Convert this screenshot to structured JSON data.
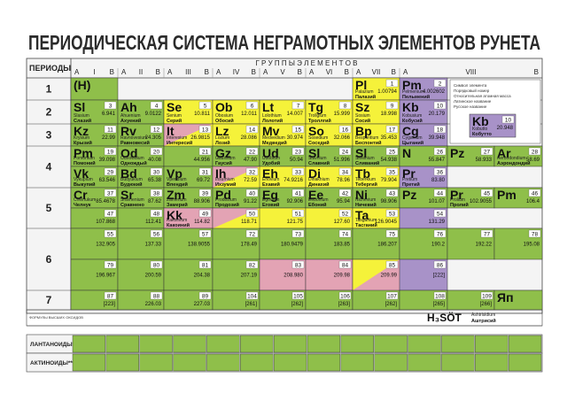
{
  "title": "ПЕРИОДИЧЕСКАЯ СИСТЕМА НЕГРАМОТНЫХ ЭЛЕМЕНТОВ РУНЕТА",
  "header": {
    "periods": "ПЕРИОДЫ",
    "groups": "Г Р У П П Ы    Э Л Е М Е Н Т О В",
    "group_labels": [
      [
        "A",
        "I",
        "B"
      ],
      [
        "A",
        "II",
        "B"
      ],
      [
        "A",
        "III",
        "B"
      ],
      [
        "A",
        "IV",
        "B"
      ],
      [
        "A",
        "V",
        "B"
      ],
      [
        "A",
        "VI",
        "B"
      ],
      [
        "A",
        "VII",
        "B"
      ],
      [
        "A",
        "VIII",
        "B"
      ]
    ]
  },
  "colors": {
    "g": "#8fbf4a",
    "y": "#f5f23a",
    "p": "#e3a3b4",
    "v": "#a892c8"
  },
  "periods": [
    {
      "label": "1",
      "rows": [
        [
          {
            "sym": "(H)",
            "c": "g"
          },
          null,
          null,
          null,
          null,
          null,
          {
            "sym": "Pl",
            "num": "1",
            "w": "1.00794",
            "lat": "Palazium",
            "ru": "Палазий",
            "c": "y"
          },
          {
            "sym": "Pm",
            "num": "2",
            "w": "4.002602",
            "lat": "Pelmenium",
            "ru": "Пельмений",
            "c": "v"
          }
        ]
      ]
    },
    {
      "label": "2",
      "rows": [
        [
          {
            "sym": "Sl",
            "num": "3",
            "w": "6.941",
            "lat": "Slasium",
            "ru": "Слазий",
            "c": "g"
          },
          {
            "sym": "Ah",
            "num": "4",
            "w": "9.0122",
            "lat": "Ahuenium",
            "ru": "Ахуений",
            "c": "g"
          },
          {
            "sym": "Se",
            "num": "5",
            "w": "10.811",
            "lat": "Senium",
            "ru": "Серий",
            "c": "y"
          },
          {
            "sym": "Ob",
            "num": "6",
            "w": "12.011",
            "lat": "Obosium",
            "ru": "Обосий",
            "c": "y"
          },
          {
            "sym": "Lt",
            "num": "7",
            "w": "14.007",
            "lat": "Lolothium",
            "ru": "Лолотий",
            "c": "y"
          },
          {
            "sym": "Tg",
            "num": "8",
            "w": "15.999",
            "lat": "Trollgium",
            "ru": "Троллгий",
            "c": "y"
          },
          {
            "sym": "Sz",
            "num": "9",
            "w": "18.998",
            "lat": "Sosium",
            "ru": "Сосий",
            "c": "y"
          },
          {
            "sym": "Kb",
            "num": "10",
            "w": "20.179",
            "lat": "Kobusium",
            "ru": "Кобусий",
            "c": "v"
          }
        ]
      ]
    },
    {
      "label": "3",
      "rows": [
        [
          {
            "sym": "Kz",
            "num": "11",
            "w": "22.99",
            "lat": "Krysium",
            "ru": "Крызий",
            "c": "g"
          },
          {
            "sym": "Rv",
            "num": "12",
            "w": "24.305",
            "lat": "Ravnovesium",
            "ru": "Равновесий",
            "c": "g"
          },
          {
            "sym": "It",
            "num": "13",
            "w": "26.9815",
            "lat": "Interesium",
            "ru": "Интересий",
            "c": "p",
            "c2": "y"
          },
          {
            "sym": "Lz",
            "num": "14",
            "w": "28.086",
            "lat": "Lozium",
            "ru": "Лозий",
            "c": "y"
          },
          {
            "sym": "Mv",
            "num": "15",
            "w": "30.974",
            "lat": "Medvedium",
            "ru": "Медведий",
            "c": "y"
          },
          {
            "sym": "So",
            "num": "16",
            "w": "32.066",
            "lat": "Sosedium",
            "ru": "Соседий",
            "c": "y"
          },
          {
            "sym": "Bp",
            "num": "17",
            "w": "35.453",
            "lat": "Bespontium",
            "ru": "Беспонтий",
            "c": "y"
          },
          {
            "sym": "Cg",
            "num": "18",
            "w": "39.948",
            "lat": "Cyganium",
            "ru": "Цыганий",
            "c": "v"
          }
        ]
      ]
    },
    {
      "label": "4",
      "rows": [
        [
          {
            "sym": "Pm",
            "num": "19",
            "w": "39.098",
            "lat": "Pomonium",
            "ru": "Помоний",
            "c": "g"
          },
          {
            "sym": "Od",
            "num": "20",
            "w": "40.08",
            "lat": "Odnowdium",
            "ru": "Однождый",
            "c": "g"
          },
          {
            "num": "21",
            "w": "44.956",
            "c": "g"
          },
          {
            "sym": "Gz",
            "num": "22",
            "w": "47.90",
            "lat": "Gaussium",
            "ru": "Гаусий",
            "c": "g"
          },
          {
            "sym": "Ud",
            "num": "23",
            "w": "50.94",
            "lat": "Udobium",
            "ru": "Удобий",
            "c": "g"
          },
          {
            "sym": "Sl",
            "num": "24",
            "w": "51.996",
            "lat": "Slavnium",
            "ru": "Славний",
            "c": "g"
          },
          {
            "sym": "Sl",
            "num": "25",
            "w": "54.938",
            "lat": "Slivanium",
            "ru": "Сливаний",
            "c": "g"
          },
          {
            "sym": "N",
            "num": "26",
            "w": "55.847",
            "c": "g"
          },
          {
            "sym": "Pz",
            "num": "27",
            "w": "58.933",
            "c": "g"
          },
          {
            "sym": "Ar",
            "num": "28",
            "w": "58.69",
            "lat": "Aerondondium",
            "ru": "Аэрондондий",
            "c": "g"
          }
        ],
        [
          {
            "sym": "Vk",
            "num": "29",
            "w": "63.546",
            "lat": "Vykupium",
            "ru": "Выкупий",
            "c": "g"
          },
          {
            "sym": "Bd",
            "num": "30",
            "w": "65.38",
            "lat": "Budyukium",
            "ru": "Будюкий",
            "c": "g"
          },
          {
            "sym": "Vp",
            "num": "31",
            "w": "69.72",
            "lat": "Vpendium",
            "ru": "Впендий",
            "c": "g"
          },
          {
            "sym": "Ih",
            "num": "32",
            "w": "72.59",
            "lat": "Ihsumium",
            "ru": "Ихзумий",
            "c": "p",
            "c2": "y"
          },
          {
            "sym": "Eh",
            "num": "33",
            "w": "74.9216",
            "lat": "Ehovium",
            "ru": "Ехавий",
            "c": "y"
          },
          {
            "sym": "Di",
            "num": "34",
            "w": "78.96",
            "lat": "Dinakhium",
            "ru": "Динахий",
            "c": "y"
          },
          {
            "sym": "Tb",
            "num": "35",
            "w": "79.904",
            "lat": "Teberkium",
            "ru": "Тебергий",
            "c": "y"
          },
          {
            "sym": "Pr",
            "num": "36",
            "w": "83.80",
            "lat": "Pretium",
            "ru": "Претий",
            "c": "v"
          }
        ]
      ]
    },
    {
      "label": "5",
      "rows": [
        [
          {
            "sym": "Cr",
            "num": "37",
            "w": "85.4678",
            "lat": "Chelnukum",
            "ru": "Челнук",
            "c": "g"
          },
          {
            "sym": "Sr",
            "num": "38",
            "w": "87.62",
            "lat": "Sravnenium",
            "ru": "Сравнено",
            "c": "g"
          },
          {
            "sym": "Zm",
            "num": "39",
            "w": "88.906",
            "lat": "Zamerium",
            "ru": "Замерий",
            "c": "g"
          },
          {
            "sym": "Pd",
            "num": "40",
            "w": "91.22",
            "lat": "Prodozium",
            "ru": "Продозий",
            "c": "g"
          },
          {
            "sym": "Eg",
            "num": "41",
            "w": "92.906",
            "lat": "Egovium",
            "ru": "Еговий",
            "c": "g"
          },
          {
            "sym": "Ee",
            "num": "42",
            "w": "95.94",
            "lat": "Eebonium",
            "ru": "Ебоний",
            "c": "g"
          },
          {
            "sym": "Ni",
            "num": "43",
            "w": "98.906",
            "lat": "Nichevium",
            "ru": "Ничевий",
            "c": "g"
          },
          {
            "sym": "Pz",
            "num": "44",
            "w": "101.07",
            "c": "g"
          },
          {
            "sym": "Pr",
            "num": "45",
            "w": "102.9055",
            "lat": "Prolium",
            "ru": "Пролий",
            "c": "g"
          },
          {
            "sym": "Pm",
            "num": "46",
            "w": "106.4",
            "c": "g"
          }
        ],
        [
          {
            "num": "47",
            "w": "107.868",
            "c": "g"
          },
          {
            "num": "48",
            "w": "112.41",
            "c": "g"
          },
          {
            "sym": "Kk",
            "num": "49",
            "w": "114.82",
            "lat": "Kakoinium",
            "ru": "Какоиний",
            "c": "p"
          },
          {
            "num": "50",
            "w": "118.71",
            "c": "p",
            "c2": "y"
          },
          {
            "num": "51",
            "w": "121.75",
            "c": "y"
          },
          {
            "num": "52",
            "w": "127.60",
            "c": "y"
          },
          {
            "sym": "Ta",
            "num": "53",
            "w": "126.9045",
            "lat": "Tasganium",
            "ru": "Тасганий",
            "c": "y"
          },
          {
            "num": "54",
            "w": "131.29",
            "c": "v"
          }
        ]
      ]
    },
    {
      "label": "6",
      "rows": [
        [
          {
            "num": "55",
            "w": "132.905",
            "c": "g"
          },
          {
            "num": "56",
            "w": "137.33",
            "c": "g"
          },
          {
            "num": "57",
            "w": "138.9055",
            "c": "g"
          },
          {
            "num": "72",
            "w": "178.49",
            "c": "g"
          },
          {
            "num": "73",
            "w": "180.9479",
            "c": "g"
          },
          {
            "num": "74",
            "w": "183.85",
            "c": "g"
          },
          {
            "num": "75",
            "w": "186.207",
            "c": "g"
          },
          {
            "num": "76",
            "w": "190.2",
            "c": "g"
          },
          {
            "num": "77",
            "w": "192.22",
            "c": "g"
          },
          {
            "num": "78",
            "w": "195.08",
            "c": "g"
          }
        ],
        [
          {
            "num": "79",
            "w": "196.967",
            "c": "g"
          },
          {
            "num": "80",
            "w": "200.59",
            "c": "g"
          },
          {
            "num": "81",
            "w": "204.38",
            "c": "g"
          },
          {
            "num": "82",
            "w": "207.19",
            "c": "g"
          },
          {
            "num": "83",
            "w": "208.980",
            "c": "p"
          },
          {
            "num": "84",
            "w": "209.98",
            "c": "p"
          },
          {
            "num": "85",
            "w": "209.99",
            "c": "y",
            "c2": "p"
          },
          {
            "num": "86",
            "w": "[222]",
            "c": "v"
          }
        ]
      ]
    },
    {
      "label": "7",
      "rows": [
        [
          {
            "num": "87",
            "w": "[223]",
            "c": "g"
          },
          {
            "num": "88",
            "w": "226.03",
            "c": "g"
          },
          {
            "num": "89",
            "w": "227.03",
            "c": "g"
          },
          {
            "num": "104",
            "w": "[261]",
            "c": "g"
          },
          {
            "num": "105",
            "w": "[262]",
            "c": "g"
          },
          {
            "num": "106",
            "w": "[263]",
            "c": "g"
          },
          {
            "num": "107",
            "w": "[262]",
            "c": "g"
          },
          {
            "num": "108",
            "w": "[265]",
            "c": "g"
          },
          {
            "num": "109",
            "w": "[266]",
            "c": "g"
          },
          {
            "sym": "Яп",
            "c": "g"
          }
        ]
      ]
    }
  ],
  "legend": {
    "items": [
      "Символ элемента",
      "Порядковый номер",
      "Относительная атомная масса",
      "Латинское название",
      "Русское название"
    ],
    "sample": {
      "sym": "Kb",
      "num": "10",
      "w": "20.948",
      "lat": "Kobutto",
      "ru": "Кобутто"
    }
  },
  "oxides": {
    "label": "ФОРМУЛЫ ВЫСШИХ ОКСИДОВ",
    "formula": "H₃SÖT",
    "lat": "Ashtrisidium",
    "ru": "Аштрисий"
  },
  "lanthanoids": "ЛАНТАНОИДЫ*",
  "actinoids": "АКТИНОИДЫ**"
}
